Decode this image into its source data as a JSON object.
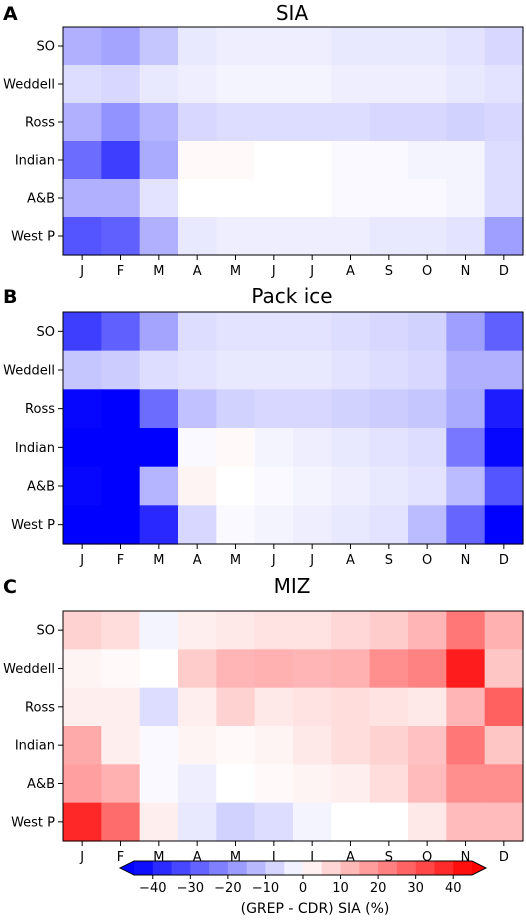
{
  "colorbar": {
    "min": -45,
    "max": 45,
    "step": 5,
    "ticks": [
      -40,
      -30,
      -20,
      -10,
      0,
      10,
      20,
      30,
      40
    ],
    "tick_labels": [
      "−40",
      "−30",
      "−20",
      "−10",
      "0",
      "10",
      "20",
      "30",
      "40"
    ],
    "label": "(GREP - CDR) SIA (%)",
    "colormap": "bwr",
    "color_low": "#0000ff",
    "color_mid": "#ffffff",
    "color_high": "#ff0000"
  },
  "chart_data": [
    {
      "type": "heatmap",
      "panel_letter": "A",
      "title": "SIA",
      "x_categories": [
        "J",
        "F",
        "M",
        "A",
        "M",
        "J",
        "J",
        "A",
        "S",
        "O",
        "N",
        "D"
      ],
      "y_categories": [
        "SO",
        "Weddell",
        "Ross",
        "Indian",
        "A&B",
        "West P"
      ],
      "values": [
        [
          -14,
          -16,
          -10,
          -4,
          -3,
          -3,
          -3,
          -4,
          -4,
          -4,
          -5,
          -7
        ],
        [
          -6,
          -7,
          -4,
          -3,
          -2,
          -2,
          -2,
          -3,
          -3,
          -3,
          -4,
          -5
        ],
        [
          -14,
          -19,
          -13,
          -7,
          -6,
          -6,
          -6,
          -6,
          -7,
          -7,
          -8,
          -7
        ],
        [
          -26,
          -34,
          -15,
          1,
          1,
          0,
          0,
          -1,
          -1,
          -2,
          -2,
          -6
        ],
        [
          -14,
          -14,
          -5,
          0,
          0,
          0,
          0,
          -1,
          -1,
          -1,
          -2,
          -6
        ],
        [
          -30,
          -28,
          -14,
          -4,
          -3,
          -3,
          -3,
          -3,
          -4,
          -4,
          -5,
          -17
        ]
      ]
    },
    {
      "type": "heatmap",
      "panel_letter": "B",
      "title": "Pack ice",
      "x_categories": [
        "J",
        "F",
        "M",
        "A",
        "M",
        "J",
        "J",
        "A",
        "S",
        "O",
        "N",
        "D"
      ],
      "y_categories": [
        "SO",
        "Weddell",
        "Ross",
        "Indian",
        "A&B",
        "West P"
      ],
      "values": [
        [
          -34,
          -28,
          -16,
          -6,
          -5,
          -5,
          -5,
          -6,
          -7,
          -8,
          -17,
          -28
        ],
        [
          -10,
          -9,
          -6,
          -5,
          -4,
          -4,
          -4,
          -5,
          -6,
          -7,
          -14,
          -14
        ],
        [
          -44,
          -50,
          -26,
          -11,
          -8,
          -7,
          -7,
          -8,
          -9,
          -10,
          -15,
          -40
        ],
        [
          -50,
          -50,
          -50,
          -1,
          1,
          -2,
          -3,
          -4,
          -5,
          -6,
          -24,
          -44
        ],
        [
          -44,
          -46,
          -13,
          2,
          0,
          -1,
          -2,
          -3,
          -4,
          -5,
          -12,
          -30
        ],
        [
          -50,
          -50,
          -38,
          -7,
          -1,
          -2,
          -3,
          -4,
          -5,
          -12,
          -27,
          -46
        ]
      ]
    },
    {
      "type": "heatmap",
      "panel_letter": "C",
      "title": "MIZ",
      "x_categories": [
        "J",
        "F",
        "M",
        "A",
        "M",
        "J",
        "J",
        "A",
        "S",
        "O",
        "N",
        "D"
      ],
      "y_categories": [
        "SO",
        "Weddell",
        "Ross",
        "Indian",
        "A&B",
        "West P"
      ],
      "values": [
        [
          8,
          6,
          -2,
          3,
          4,
          5,
          5,
          7,
          9,
          13,
          24,
          14
        ],
        [
          2,
          1,
          0,
          9,
          13,
          14,
          13,
          14,
          20,
          22,
          40,
          10
        ],
        [
          3,
          3,
          -6,
          3,
          8,
          4,
          5,
          6,
          5,
          4,
          13,
          28
        ],
        [
          15,
          3,
          -1,
          2,
          1,
          2,
          4,
          6,
          8,
          11,
          24,
          10
        ],
        [
          17,
          14,
          -1,
          -3,
          0,
          1,
          2,
          3,
          6,
          12,
          20,
          20
        ],
        [
          38,
          26,
          3,
          -4,
          -8,
          -6,
          -2,
          0,
          0,
          4,
          12,
          12
        ]
      ]
    }
  ]
}
